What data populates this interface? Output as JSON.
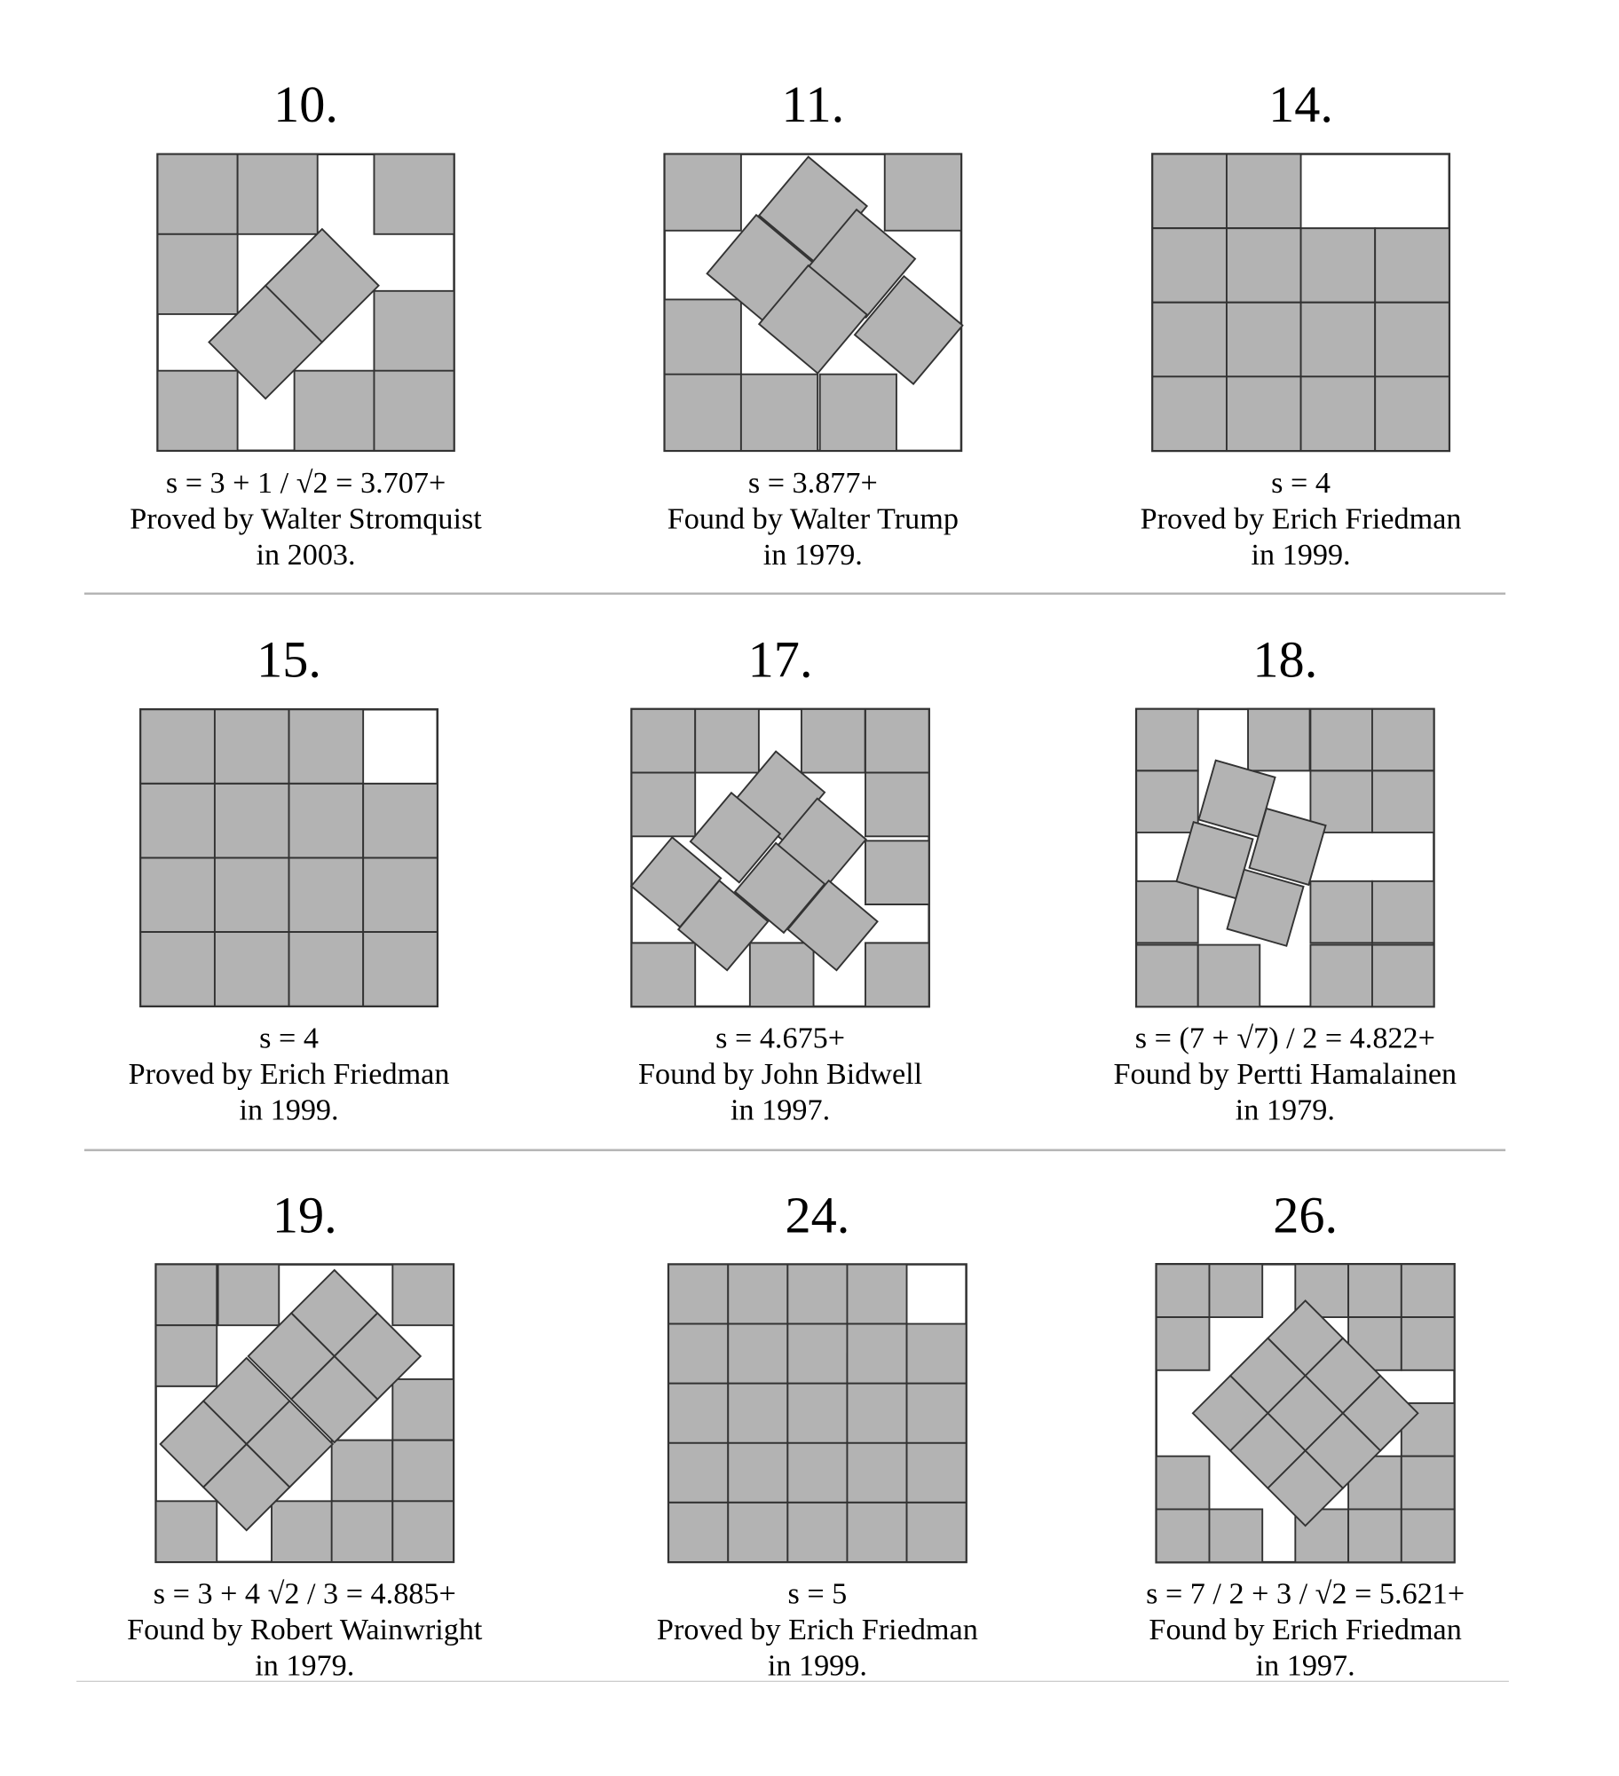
{
  "colors": {
    "square_fill": "#b3b3b3",
    "square_stroke": "#333333",
    "separator": "#b5b5b5"
  },
  "panels": [
    {
      "n": "10.",
      "side": "s = 3 + 1 / √2 = 3.707+",
      "credit": "Proved by Walter Stromquist",
      "year": "in 2003."
    },
    {
      "n": "11.",
      "side": "s = 3.877+",
      "credit": "Found by Walter Trump",
      "year": "in 1979."
    },
    {
      "n": "14.",
      "side": "s = 4",
      "credit": "Proved by Erich Friedman",
      "year": "in 1999."
    },
    {
      "n": "15.",
      "side": "s = 4",
      "credit": "Proved by Erich Friedman",
      "year": "in 1999."
    },
    {
      "n": "17.",
      "side": "s = 4.675+",
      "credit": "Found by John Bidwell",
      "year": "in 1997."
    },
    {
      "n": "18.",
      "side": "s = (7 + √7) / 2 = 4.822+",
      "credit": "Found by Pertti Hamalainen",
      "year": "in 1979."
    },
    {
      "n": "19.",
      "side": "s = 3 + 4 √2 / 3 = 4.885+",
      "credit": "Found by Robert Wainwright",
      "year": "in 1979."
    },
    {
      "n": "24.",
      "side": "s = 5",
      "credit": "Proved by Erich Friedman",
      "year": "in 1999."
    },
    {
      "n": "26.",
      "side": "s = 7 / 2 + 3 / √2 = 5.621+",
      "credit": "Found by Erich Friedman",
      "year": "in 1997."
    }
  ]
}
